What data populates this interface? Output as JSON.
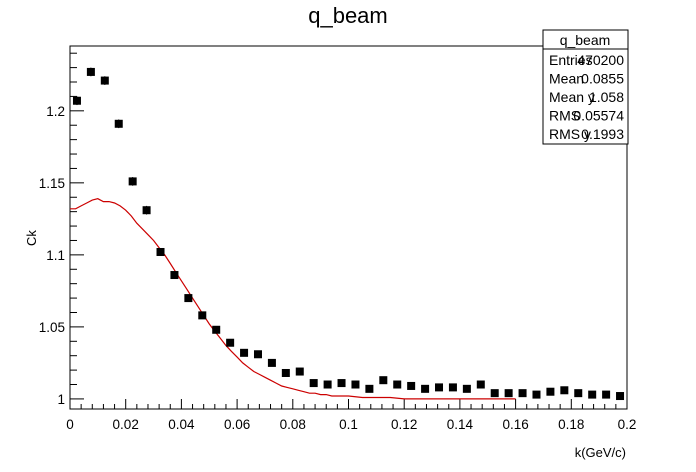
{
  "chart_data": {
    "type": "scatter",
    "title": "q_beam",
    "xlabel": "k(GeV/c)",
    "ylabel": "Ck",
    "xlim": [
      0,
      0.2
    ],
    "ylim": [
      0.993,
      1.245
    ],
    "grid": false,
    "x_ticks": [
      "0",
      "0.02",
      "0.04",
      "0.06",
      "0.08",
      "0.1",
      "0.12",
      "0.14",
      "0.16",
      "0.18",
      "0.2"
    ],
    "y_ticks": [
      "1",
      "1.05",
      "1.1",
      "1.15",
      "1.2"
    ],
    "series": [
      {
        "kind": "points",
        "marker": "square",
        "color": "#000000",
        "x": [
          0.0025,
          0.0075,
          0.0125,
          0.0175,
          0.0225,
          0.0275,
          0.0325,
          0.0375,
          0.0425,
          0.0475,
          0.0525,
          0.0575,
          0.0625,
          0.0675,
          0.0725,
          0.0775,
          0.0825,
          0.0875,
          0.0925,
          0.0975,
          0.1025,
          0.1075,
          0.1125,
          0.1175,
          0.1225,
          0.1275,
          0.1325,
          0.1375,
          0.1425,
          0.1475,
          0.1525,
          0.1575,
          0.1625,
          0.1675,
          0.1725,
          0.1775,
          0.1825,
          0.1875,
          0.1925,
          0.1975
        ],
        "y": [
          1.207,
          1.227,
          1.221,
          1.191,
          1.151,
          1.131,
          1.102,
          1.086,
          1.07,
          1.058,
          1.048,
          1.039,
          1.032,
          1.031,
          1.025,
          1.018,
          1.019,
          1.011,
          1.01,
          1.011,
          1.01,
          1.007,
          1.013,
          1.01,
          1.009,
          1.007,
          1.008,
          1.008,
          1.007,
          1.01,
          1.004,
          1.004,
          1.004,
          1.003,
          1.005,
          1.006,
          1.004,
          1.003,
          1.003,
          1.002
        ],
        "err": [
          0.003,
          0.003,
          0.003,
          0.003,
          0.003,
          0.003,
          0.002,
          0.002,
          0.002,
          0.002,
          0.002,
          0.002,
          0.002,
          0.002,
          0.002,
          0.002,
          0.002,
          0.002,
          0.002,
          0.002,
          0.002,
          0.002,
          0.002,
          0.002,
          0.002,
          0.002,
          0.002,
          0.002,
          0.002,
          0.002,
          0.002,
          0.002,
          0.002,
          0.002,
          0.002,
          0.002,
          0.002,
          0.002,
          0.002,
          0.002
        ]
      },
      {
        "kind": "curve",
        "color": "#cc0000",
        "x": [
          0.0,
          0.002,
          0.004,
          0.006,
          0.008,
          0.01,
          0.012,
          0.014,
          0.016,
          0.018,
          0.02,
          0.022,
          0.024,
          0.026,
          0.028,
          0.03,
          0.032,
          0.034,
          0.036,
          0.038,
          0.04,
          0.042,
          0.044,
          0.046,
          0.048,
          0.05,
          0.052,
          0.054,
          0.056,
          0.058,
          0.06,
          0.062,
          0.064,
          0.066,
          0.068,
          0.07,
          0.072,
          0.074,
          0.076,
          0.078,
          0.08,
          0.082,
          0.084,
          0.086,
          0.088,
          0.09,
          0.092,
          0.094,
          0.096,
          0.098,
          0.1,
          0.105,
          0.11,
          0.115,
          0.12,
          0.13,
          0.14,
          0.15,
          0.16
        ],
        "y": [
          1.132,
          1.132,
          1.134,
          1.136,
          1.138,
          1.139,
          1.137,
          1.137,
          1.136,
          1.134,
          1.131,
          1.127,
          1.122,
          1.118,
          1.114,
          1.11,
          1.105,
          1.1,
          1.094,
          1.088,
          1.082,
          1.076,
          1.07,
          1.064,
          1.058,
          1.052,
          1.047,
          1.042,
          1.037,
          1.033,
          1.029,
          1.025,
          1.022,
          1.019,
          1.017,
          1.015,
          1.013,
          1.011,
          1.009,
          1.008,
          1.007,
          1.006,
          1.005,
          1.004,
          1.004,
          1.003,
          1.003,
          1.002,
          1.002,
          1.002,
          1.002,
          1.001,
          1.001,
          1.001,
          1.0,
          1.0,
          1.0,
          1.0,
          1.0
        ]
      }
    ],
    "stats": {
      "title": "q_beam",
      "rows": [
        {
          "label": "Entries",
          "value": "470200"
        },
        {
          "label": "Mean",
          "value": "0.0855"
        },
        {
          "label": "Mean y",
          "value": "1.058"
        },
        {
          "label": "RMS",
          "value": "0.05574"
        },
        {
          "label": "RMS y",
          "value": "0.1993"
        }
      ]
    }
  }
}
